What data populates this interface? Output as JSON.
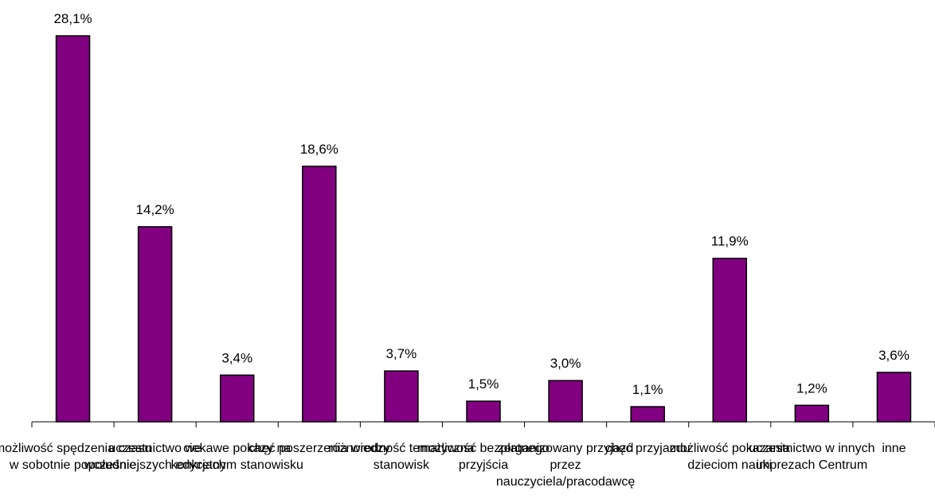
{
  "chart_data": {
    "type": "bar",
    "categories": [
      "możliwość spędzenia czasu w sobotnie popołudnie",
      "uczestnictwo we wcześniejszych edycjach",
      "ciekawe pokazy na konkretnym stanowisku",
      "chęć poszerzenia wiedzy",
      "różnorodność tematyczna stanowisk",
      "możliwość bezpłatnego przyjścia",
      "zorganizowany przyjazd przez nauczyciela/pracodawcę",
      "chęć przyjazdu",
      "możliwość pokazania dzieciom nauki",
      "uczestnictwo w innych imprezach Centrum",
      "inne"
    ],
    "values": [
      28.1,
      14.2,
      3.4,
      18.6,
      3.7,
      1.5,
      3.0,
      1.1,
      11.9,
      1.2,
      3.6
    ],
    "value_labels": [
      "28,1%",
      "14,2%",
      "3,4%",
      "18,6%",
      "3,7%",
      "1,5%",
      "3,0%",
      "1,1%",
      "11,9%",
      "1,2%",
      "3,6%"
    ],
    "color": "#800080"
  }
}
